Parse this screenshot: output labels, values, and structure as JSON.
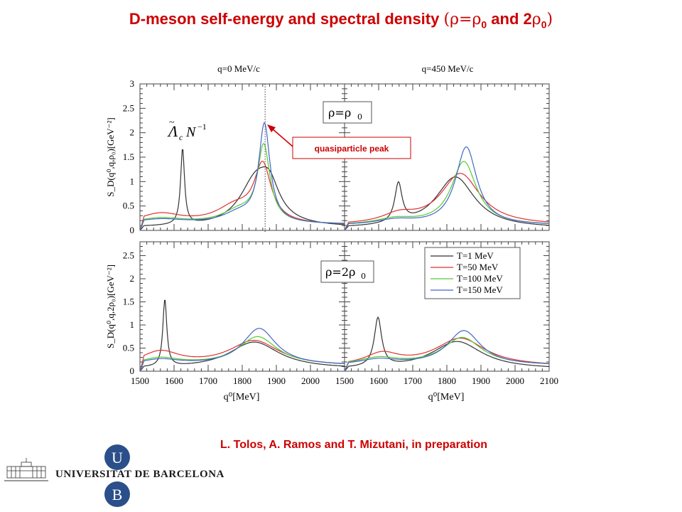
{
  "slide": {
    "title_text": "D-meson self-energy and spectral density",
    "title_paren_open": "(",
    "title_rho1": "ρ=ρ",
    "title_sub1": "0",
    "title_and": " and 2",
    "title_rho2": "ρ",
    "title_sub2": "0",
    "title_paren_close": ")",
    "citation": "L. Tolos, A. Ramos and T. Mizutani, in preparation",
    "university": "UNIVERSITAT DE BARCELONA",
    "logo_letters": [
      "U",
      "B"
    ]
  },
  "colors": {
    "title": "#cc0000",
    "logo_blue": "#2b4f8a",
    "T1": "#333333",
    "T50": "#e23030",
    "T100": "#55cc33",
    "T150": "#4466cc"
  },
  "annotations": {
    "rho_top": "ρ=ρ",
    "rho_top_sub": "0",
    "rho_bottom": "ρ=2ρ",
    "rho_bottom_sub": "0",
    "quasiparticle": "quasiparticle peak",
    "lambda_label": "Λ",
    "lambda_c": "c",
    "lambda_N": "N",
    "lambda_exp": "−1"
  },
  "chart_data": {
    "type": "line",
    "panel_titles": [
      "q=0 MeV/c",
      "q=450 MeV/c"
    ],
    "xlabel": "q⁰[MeV]",
    "ylabel_top": "S_D(q⁰,q,ρ₀)[GeV⁻²]",
    "ylabel_bottom": "S_D(q⁰,q,2ρ₀)[GeV⁻²]",
    "xlim": [
      1500,
      2100
    ],
    "ylim_top": [
      0,
      3
    ],
    "ylim_bottom": [
      0,
      2.8
    ],
    "xticks_left": [
      "1500",
      "1600",
      "1700",
      "1800",
      "1900",
      "2000"
    ],
    "xticks_right": [
      "1500",
      "1600",
      "1700",
      "1800",
      "1900",
      "2000",
      "2100"
    ],
    "yticks_top": [
      "0",
      "0.5",
      "1",
      "1.5",
      "2",
      "2.5",
      "3"
    ],
    "yticks_bottom": [
      "0",
      "0.5",
      "1",
      "1.5",
      "2",
      "2.5"
    ],
    "legend": [
      "T=1 MeV",
      "T=50 MeV",
      "T=100 MeV",
      "T=150 MeV"
    ],
    "legend_position": "bottom-right panel, top-right",
    "dotted_line_x": 1867,
    "panels": [
      {
        "name": "rho0-q0",
        "series": [
          {
            "name": "T=1 MeV",
            "components": [
              [
                1625,
                1.55,
                7
              ],
              [
                1840,
                0.92,
                58
              ],
              [
                1880,
                0.55,
                35
              ]
            ],
            "base": 0.06
          },
          {
            "name": "T=50 MeV",
            "components": [
              [
                1560,
                0.22,
                80
              ],
              [
                1860,
                1.15,
                30
              ],
              [
                1780,
                0.35,
                70
              ]
            ],
            "base": 0.1
          },
          {
            "name": "T=100 MeV",
            "components": [
              [
                1560,
                0.12,
                90
              ],
              [
                1863,
                1.55,
                22
              ],
              [
                1790,
                0.25,
                60
              ]
            ],
            "base": 0.12
          },
          {
            "name": "T=150 MeV",
            "components": [
              [
                1560,
                0.1,
                90
              ],
              [
                1865,
                2.0,
                20
              ],
              [
                1790,
                0.2,
                60
              ]
            ],
            "base": 0.12
          }
        ]
      },
      {
        "name": "rho0-q450",
        "series": [
          {
            "name": "T=1 MeV",
            "components": [
              [
                1658,
                0.8,
                13
              ],
              [
                1825,
                1.05,
                70
              ]
            ],
            "base": 0.04
          },
          {
            "name": "T=50 MeV",
            "components": [
              [
                1660,
                0.18,
                60
              ],
              [
                1840,
                1.05,
                70
              ]
            ],
            "base": 0.1
          },
          {
            "name": "T=100 MeV",
            "components": [
              [
                1650,
                0.12,
                70
              ],
              [
                1850,
                1.3,
                45
              ]
            ],
            "base": 0.1
          },
          {
            "name": "T=150 MeV",
            "components": [
              [
                1650,
                0.1,
                70
              ],
              [
                1857,
                1.6,
                38
              ]
            ],
            "base": 0.1
          }
        ]
      },
      {
        "name": "2rho0-q0",
        "series": [
          {
            "name": "T=1 MeV",
            "components": [
              [
                1573,
                1.45,
                7
              ],
              [
                1835,
                0.58,
                90
              ]
            ],
            "base": 0.05
          },
          {
            "name": "T=50 MeV",
            "components": [
              [
                1560,
                0.3,
                70
              ],
              [
                1835,
                0.55,
                90
              ]
            ],
            "base": 0.1
          },
          {
            "name": "T=100 MeV",
            "components": [
              [
                1560,
                0.15,
                70
              ],
              [
                1845,
                0.62,
                70
              ]
            ],
            "base": 0.12
          },
          {
            "name": "T=150 MeV",
            "components": [
              [
                1560,
                0.12,
                70
              ],
              [
                1850,
                0.8,
                60
              ]
            ],
            "base": 0.12
          }
        ]
      },
      {
        "name": "2rho0-q450",
        "series": [
          {
            "name": "T=1 MeV",
            "components": [
              [
                1598,
                1.05,
                13
              ],
              [
                1830,
                0.6,
                90
              ]
            ],
            "base": 0.04
          },
          {
            "name": "T=50 MeV",
            "components": [
              [
                1610,
                0.25,
                60
              ],
              [
                1840,
                0.6,
                90
              ]
            ],
            "base": 0.1
          },
          {
            "name": "T=100 MeV",
            "components": [
              [
                1600,
                0.15,
                70
              ],
              [
                1845,
                0.6,
                70
              ]
            ],
            "base": 0.12
          },
          {
            "name": "T=150 MeV",
            "components": [
              [
                1600,
                0.12,
                70
              ],
              [
                1850,
                0.75,
                60
              ]
            ],
            "base": 0.12
          }
        ]
      }
    ]
  }
}
